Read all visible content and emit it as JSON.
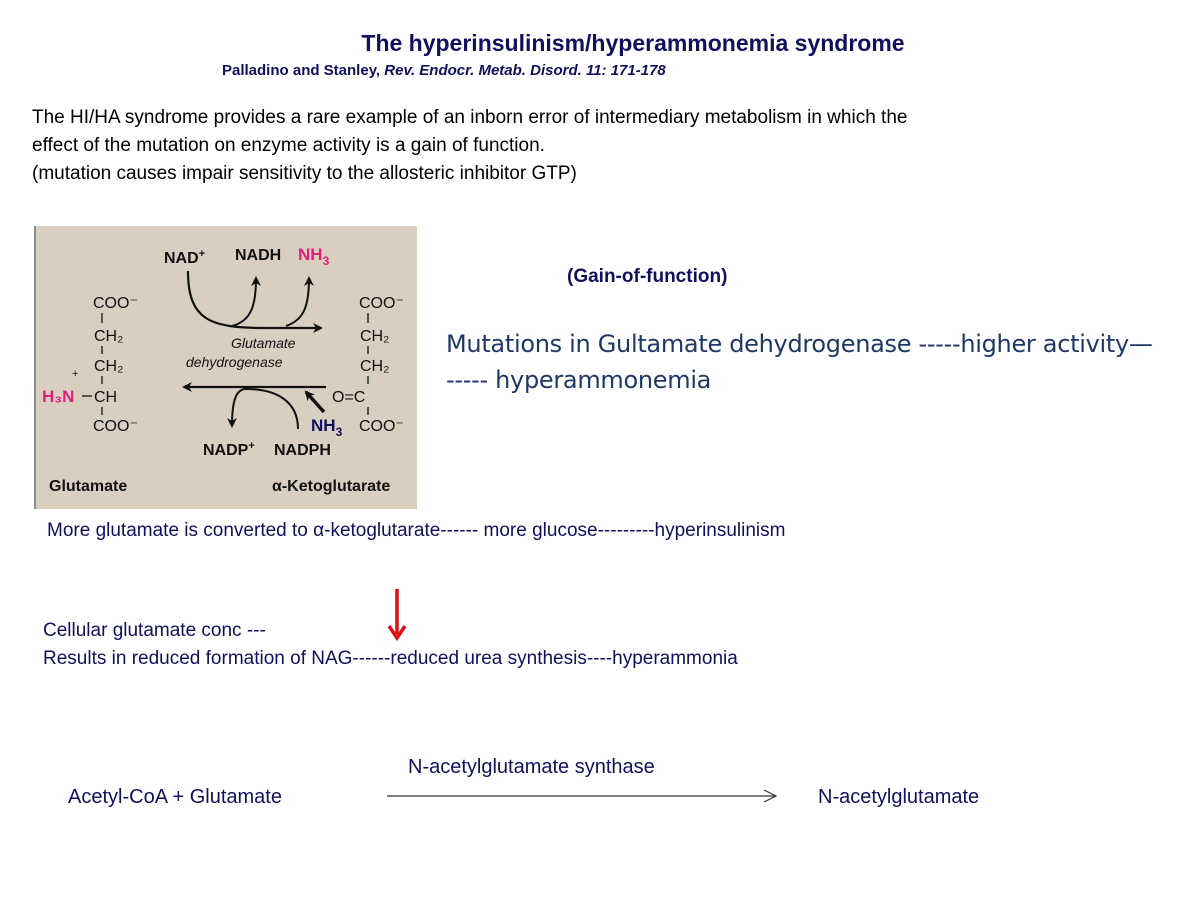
{
  "slide": {
    "title": "The hyperinsulinism/hyperammonemia syndrome",
    "citation_authors": "Palladino and Stanley,",
    "citation_journal": "Rev. Endocr. Metab. Disord. 11: 171-178",
    "intro_line1": "The HI/HA syndrome provides a rare example of an inborn error of intermediary metabolism in which the",
    "intro_line2": "effect of the mutation on enzyme activity is a gain of function.",
    "intro_line3": "(mutation causes impair sensitivity to the allosteric inhibitor GTP)",
    "gain_label": "(Gain-of-function)",
    "mutation_line1": "Mutations in Gultamate dehydrogenase -----higher activity—",
    "mutation_line2": "----- hyperammonemia",
    "more_glutamate": "More glutamate is converted to α-ketoglutarate------ more glucose---------hyperinsulinism",
    "cellular_conc": "Cellular glutamate conc  ---",
    "results_line": "Results in reduced formation of NAG------reduced urea synthesis----hyperammonia",
    "reaction_enzyme": "N-acetylglutamate synthase",
    "reaction_substrates": "Acetyl-CoA + Glutamate",
    "reaction_product": "N-acetylglutamate"
  },
  "diagram": {
    "nad_plus": "NAD",
    "nad_sup": "+",
    "nadh": "NADH",
    "nh3_top": "NH",
    "nh3_top_sub": "3",
    "enzyme_line1": "Glutamate",
    "enzyme_line2": "dehydrogenase",
    "nadp_plus": "NADP",
    "nadp_sup": "+",
    "nadph": "NADPH",
    "nh3_bottom": "NH",
    "nh3_bottom_sub": "3",
    "left_coo_top": "COO⁻",
    "left_ch2_a": "CH₂",
    "left_ch2_b": "CH₂",
    "left_h3n": "H₃N",
    "left_plus": "+",
    "left_ch": "CH",
    "left_coo_bottom": "COO⁻",
    "right_coo_top": "COO⁻",
    "right_ch2_a": "CH₂",
    "right_ch2_b": "CH₂",
    "right_oc": "O=C",
    "right_coo_bottom": "COO⁻",
    "glutamate_label": "Glutamate",
    "ketoglutarate_label": "α-Ketoglutarate"
  },
  "colors": {
    "title": "#10105e",
    "magenta": "#e0207a",
    "navy": "#10105e",
    "red_arrow": "#e01010",
    "diagram_bg": "#d9cfc1"
  }
}
